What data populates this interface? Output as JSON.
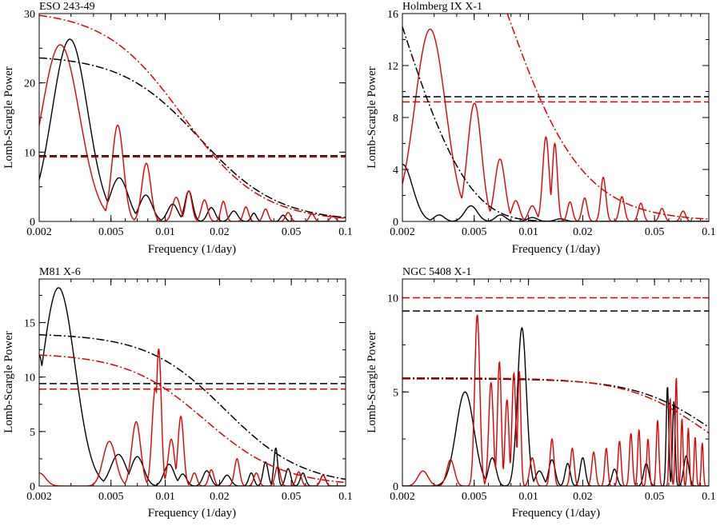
{
  "figure": {
    "xlabel": "Frequency (1/day)",
    "ylabel": "Lomb-Scargle Power"
  },
  "chart_data": [
    {
      "type": "line",
      "title": "ESO 243-49",
      "xlabel": "Frequency (1/day)",
      "ylabel": "Lomb-Scargle Power",
      "xscale": "log",
      "xlim": [
        0.002,
        0.1
      ],
      "ylim": [
        0,
        30
      ],
      "x_ticks": [
        0.002,
        0.005,
        0.01,
        0.02,
        0.05,
        0.1
      ],
      "x_tick_labels": [
        "0.002",
        "0.005",
        "0.01",
        "0.02",
        "0.05",
        "0.1"
      ],
      "y_ticks": [
        0,
        10,
        20,
        30
      ],
      "y_tick_labels": [
        "0",
        "10",
        "20",
        "30"
      ],
      "series": [
        {
          "style": "solid",
          "color": "#000000",
          "peaks": [
            [
              0.00296,
              26.3,
              0.14
            ],
            [
              0.00555,
              6.3,
              0.07
            ],
            [
              0.0078,
              3.8,
              0.05
            ],
            [
              0.011,
              2.5,
              0.04
            ],
            [
              0.0135,
              4.4,
              0.03
            ],
            [
              0.018,
              2.0,
              0.03
            ],
            [
              0.024,
              1.5,
              0.03
            ],
            [
              0.031,
              1.2,
              0.02
            ],
            [
              0.045,
              0.9,
              0.02
            ]
          ],
          "rise": [
            0.002,
            3.2
          ]
        },
        {
          "style": "solid",
          "color": "#dd0000",
          "peaks": [
            [
              0.00262,
              25.5,
              0.15
            ],
            [
              0.00545,
              13.9,
              0.045
            ],
            [
              0.00785,
              8.4,
              0.035
            ],
            [
              0.0045,
              1.9,
              0.03
            ],
            [
              0.0115,
              3.5,
              0.03
            ],
            [
              0.0135,
              4.4,
              0.025
            ],
            [
              0.0165,
              3.1,
              0.025
            ],
            [
              0.021,
              2.9,
              0.02
            ],
            [
              0.028,
              2.1,
              0.02
            ],
            [
              0.036,
              1.8,
              0.02
            ],
            [
              0.048,
              1.3,
              0.02
            ],
            [
              0.065,
              1.1,
              0.02
            ],
            [
              0.085,
              0.8,
              0.02
            ]
          ],
          "rise": [
            0.002,
            11.5
          ]
        },
        {
          "style": "dashed",
          "color": "#000000",
          "level": 9.5
        },
        {
          "style": "dashed",
          "color": "#dd0000",
          "level": 9.3
        },
        {
          "style": "dashdot",
          "color": "#000000",
          "amp": 24.0,
          "fc": 0.0155
        },
        {
          "style": "dashdot",
          "color": "#dd0000",
          "amp": 30.5,
          "fc": 0.0125
        }
      ]
    },
    {
      "type": "line",
      "title": "Holmberg IX X-1",
      "xlabel": "Frequency (1/day)",
      "ylabel": "Lomb-Scargle Power",
      "xscale": "log",
      "xlim": [
        0.002,
        0.1
      ],
      "ylim": [
        0,
        16
      ],
      "x_ticks": [
        0.002,
        0.005,
        0.01,
        0.02,
        0.05,
        0.1
      ],
      "x_tick_labels": [
        "0.002",
        "0.005",
        "0.01",
        "0.02",
        "0.05",
        "0.1"
      ],
      "y_ticks": [
        0,
        4,
        8,
        12,
        16
      ],
      "y_tick_labels": [
        "0",
        "4",
        "8",
        "12",
        "16"
      ],
      "series": [
        {
          "style": "solid",
          "color": "#000000",
          "peaks": [
            [
              0.002,
              4.4,
              0.08
            ],
            [
              0.0032,
              0.5,
              0.04
            ],
            [
              0.0048,
              1.2,
              0.05
            ],
            [
              0.007,
              0.5,
              0.04
            ],
            [
              0.0105,
              0.3,
              0.04
            ],
            [
              0.015,
              0.2,
              0.04
            ]
          ]
        },
        {
          "style": "solid",
          "color": "#dd0000",
          "peaks": [
            [
              0.00285,
              14.8,
              0.12
            ],
            [
              0.00502,
              9.1,
              0.055
            ],
            [
              0.00695,
              4.8,
              0.04
            ],
            [
              0.0125,
              6.5,
              0.025
            ],
            [
              0.014,
              6.0,
              0.02
            ],
            [
              0.0085,
              1.6,
              0.03
            ],
            [
              0.0105,
              1.2,
              0.03
            ],
            [
              0.017,
              1.5,
              0.02
            ],
            [
              0.0205,
              1.8,
              0.02
            ],
            [
              0.026,
              3.4,
              0.02
            ],
            [
              0.033,
              1.9,
              0.02
            ],
            [
              0.042,
              1.4,
              0.02
            ],
            [
              0.055,
              1.0,
              0.02
            ],
            [
              0.072,
              0.8,
              0.02
            ]
          ],
          "rise": [
            0.002,
            1.5
          ]
        },
        {
          "style": "dashed",
          "color": "#000000",
          "level": 9.6
        },
        {
          "style": "dashed",
          "color": "#dd0000",
          "level": 9.2
        },
        {
          "style": "dashdot",
          "color": "#000000",
          "amp": 15.0,
          "decay": 0.0016,
          "from": 0.002
        },
        {
          "style": "dashdot",
          "color": "#dd0000",
          "amp": 34.0,
          "fc": 0.0072
        }
      ]
    },
    {
      "type": "line",
      "title": "M81 X-6",
      "xlabel": "Frequency (1/day)",
      "ylabel": "Lomb-Scargle Power",
      "xscale": "log",
      "xlim": [
        0.002,
        0.1
      ],
      "ylim": [
        0,
        19
      ],
      "x_ticks": [
        0.002,
        0.005,
        0.01,
        0.02,
        0.05,
        0.1
      ],
      "x_tick_labels": [
        "0.002",
        "0.005",
        "0.01",
        "0.02",
        "0.05",
        "0.1"
      ],
      "y_ticks": [
        0,
        5,
        10,
        15
      ],
      "y_tick_labels": [
        "0",
        "5",
        "10",
        "15"
      ],
      "series": [
        {
          "style": "solid",
          "color": "#000000",
          "peaks": [
            [
              0.00256,
              18.2,
              0.13
            ],
            [
              0.0055,
              2.9,
              0.06
            ],
            [
              0.007,
              2.7,
              0.05
            ],
            [
              0.0105,
              2.0,
              0.04
            ],
            [
              0.0125,
              1.1,
              0.03
            ],
            [
              0.017,
              1.4,
              0.03
            ],
            [
              0.022,
              1.0,
              0.03
            ],
            [
              0.03,
              1.2,
              0.02
            ],
            [
              0.036,
              2.2,
              0.02
            ],
            [
              0.041,
              3.5,
              0.015
            ],
            [
              0.048,
              1.6,
              0.02
            ],
            [
              0.058,
              1.2,
              0.02
            ],
            [
              0.075,
              1.0,
              0.02
            ]
          ],
          "rise": [
            0.002,
            12.0
          ]
        },
        {
          "style": "solid",
          "color": "#dd0000",
          "peaks": [
            [
              0.002,
              1.2,
              0.05
            ],
            [
              0.0049,
              4.1,
              0.05
            ],
            [
              0.0069,
              5.9,
              0.035
            ],
            [
              0.0088,
              9.0,
              0.025
            ],
            [
              0.0092,
              12.6,
              0.02
            ],
            [
              0.0108,
              4.3,
              0.025
            ],
            [
              0.0122,
              6.4,
              0.022
            ],
            [
              0.0145,
              1.2,
              0.02
            ],
            [
              0.018,
              1.5,
              0.02
            ],
            [
              0.025,
              2.5,
              0.02
            ],
            [
              0.032,
              1.2,
              0.02
            ],
            [
              0.042,
              1.8,
              0.02
            ],
            [
              0.055,
              1.3,
              0.02
            ],
            [
              0.075,
              1.0,
              0.02
            ]
          ]
        },
        {
          "style": "dashed",
          "color": "#000000",
          "level": 9.4
        },
        {
          "style": "dashed",
          "color": "#dd0000",
          "level": 8.9
        },
        {
          "style": "dashdot",
          "color": "#000000",
          "amp": 14.0,
          "fc": 0.0215
        },
        {
          "style": "dashdot",
          "color": "#dd0000",
          "amp": 12.2,
          "fc": 0.0165
        }
      ]
    },
    {
      "type": "line",
      "title": "NGC 5408 X-1",
      "xlabel": "Frequency (1/day)",
      "ylabel": "Lomb-Scargle Power",
      "xscale": "log",
      "xlim": [
        0.002,
        0.1
      ],
      "ylim": [
        0,
        11
      ],
      "x_ticks": [
        0.002,
        0.005,
        0.01,
        0.02,
        0.05,
        0.1
      ],
      "x_tick_labels": [
        "0.002",
        "0.005",
        "0.01",
        "0.02",
        "0.05",
        "0.1"
      ],
      "y_ticks": [
        0,
        5,
        10
      ],
      "y_tick_labels": [
        "0",
        "5",
        "10"
      ],
      "series": [
        {
          "style": "solid",
          "color": "#000000",
          "peaks": [
            [
              0.00445,
              5.0,
              0.07
            ],
            [
              0.0092,
              8.4,
              0.035
            ],
            [
              0.0063,
              1.5,
              0.03
            ],
            [
              0.0115,
              0.8,
              0.03
            ],
            [
              0.0135,
              1.4,
              0.025
            ],
            [
              0.0165,
              1.2,
              0.02
            ],
            [
              0.02,
              1.5,
              0.02
            ],
            [
              0.03,
              0.9,
              0.02
            ],
            [
              0.045,
              1.2,
              0.02
            ],
            [
              0.059,
              5.3,
              0.01
            ],
            [
              0.064,
              4.5,
              0.01
            ],
            [
              0.075,
              1.6,
              0.02
            ]
          ]
        },
        {
          "style": "solid",
          "color": "#dd0000",
          "peaks": [
            [
              0.0026,
              0.8,
              0.04
            ],
            [
              0.0037,
              1.4,
              0.03
            ],
            [
              0.0052,
              9.1,
              0.02
            ],
            [
              0.0062,
              5.5,
              0.018
            ],
            [
              0.0069,
              6.6,
              0.015
            ],
            [
              0.0076,
              4.6,
              0.015
            ],
            [
              0.0083,
              6.0,
              0.015
            ],
            [
              0.0089,
              6.1,
              0.012
            ],
            [
              0.0105,
              1.5,
              0.02
            ],
            [
              0.0135,
              2.5,
              0.015
            ],
            [
              0.0175,
              2.0,
              0.015
            ],
            [
              0.023,
              1.8,
              0.015
            ],
            [
              0.027,
              2.0,
              0.012
            ],
            [
              0.032,
              2.4,
              0.012
            ],
            [
              0.037,
              2.8,
              0.012
            ],
            [
              0.041,
              3.0,
              0.01
            ],
            [
              0.046,
              2.5,
              0.01
            ],
            [
              0.052,
              3.5,
              0.01
            ],
            [
              0.061,
              4.7,
              0.008
            ],
            [
              0.066,
              5.8,
              0.008
            ],
            [
              0.071,
              3.6,
              0.008
            ],
            [
              0.077,
              3.1,
              0.008
            ],
            [
              0.084,
              2.6,
              0.008
            ],
            [
              0.092,
              2.3,
              0.008
            ]
          ]
        },
        {
          "style": "dashed",
          "color": "#000000",
          "level": 9.3
        },
        {
          "style": "dashed",
          "color": "#dd0000",
          "level": 10.0
        },
        {
          "style": "dashdot",
          "color": "#000000",
          "amp": 5.7,
          "fc": 0.11
        },
        {
          "style": "dashdot",
          "color": "#dd0000",
          "amp": 5.75,
          "fc": 0.098
        }
      ]
    }
  ]
}
